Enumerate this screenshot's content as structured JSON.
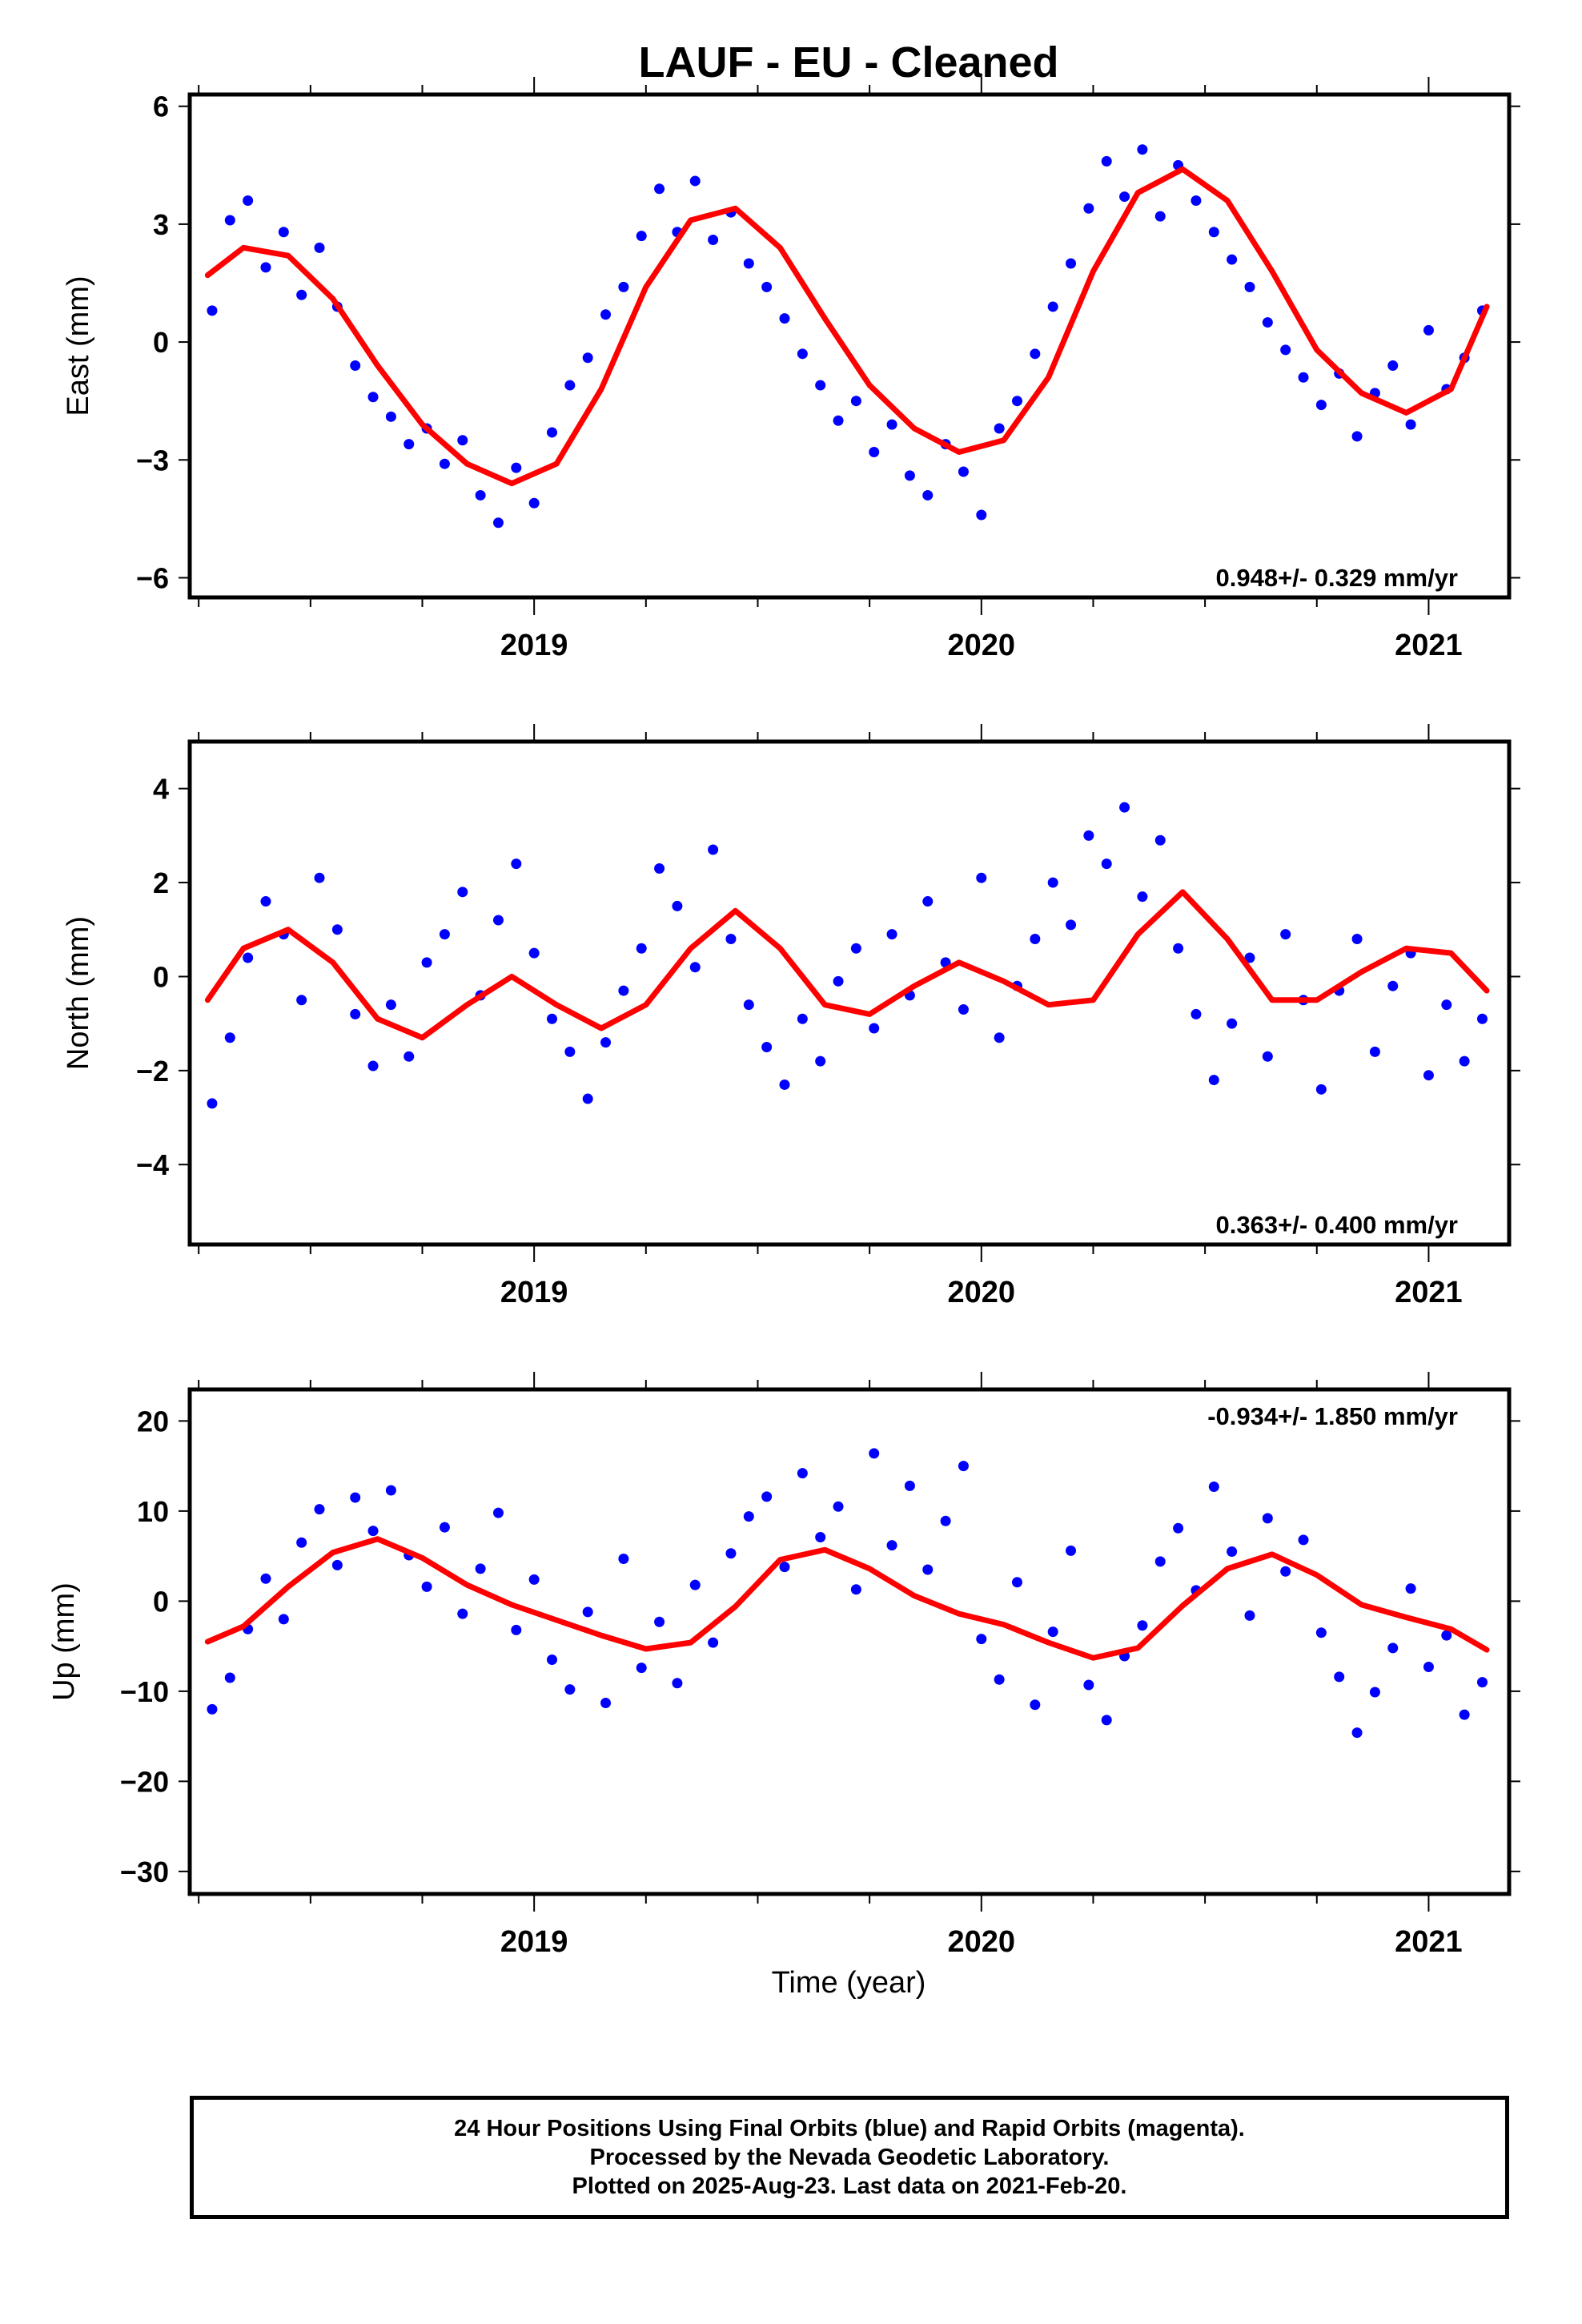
{
  "title": "LAUF  - EU - Cleaned",
  "xlabel": "Time (year)",
  "footer": {
    "line1": "24 Hour Positions Using Final Orbits (blue) and Rapid Orbits (magenta).",
    "line2": "Processed by the Nevada Geodetic Laboratory.",
    "line3": "Plotted on 2025-Aug-23. Last data on 2021-Feb-20."
  },
  "colors": {
    "points": "#0000ff",
    "model": "#ff0000",
    "frame": "#000000"
  },
  "chart_data": [
    {
      "type": "scatter",
      "ylabel": "East (mm)",
      "rate": "0.948+/- 0.329 mm/yr",
      "rate_position": "bottom-right",
      "xlim": [
        2018.23,
        2021.18
      ],
      "ylim": [
        -6.5,
        6.3
      ],
      "yticks": [
        6,
        3,
        0,
        -3,
        -6
      ],
      "yticklabels": [
        "6",
        "3",
        "0",
        "−3",
        "−6"
      ],
      "xticks": [
        2019,
        2020,
        2021
      ],
      "xticklabels": [
        "2019",
        "2020",
        "2021"
      ],
      "series": [
        {
          "kind": "scatter",
          "color": "#0000ff",
          "x": [
            2018.28,
            2018.32,
            2018.36,
            2018.4,
            2018.44,
            2018.48,
            2018.52,
            2018.56,
            2018.6,
            2018.64,
            2018.68,
            2018.72,
            2018.76,
            2018.8,
            2018.84,
            2018.88,
            2018.92,
            2018.96,
            2019.0,
            2019.04,
            2019.08,
            2019.12,
            2019.16,
            2019.2,
            2019.24,
            2019.28,
            2019.32,
            2019.36,
            2019.4,
            2019.44,
            2019.48,
            2019.52,
            2019.56,
            2019.6,
            2019.64,
            2019.68,
            2019.72,
            2019.76,
            2019.8,
            2019.84,
            2019.88,
            2019.92,
            2019.96,
            2020.0,
            2020.04,
            2020.08,
            2020.12,
            2020.16,
            2020.2,
            2020.24,
            2020.28,
            2020.32,
            2020.36,
            2020.4,
            2020.44,
            2020.48,
            2020.52,
            2020.56,
            2020.6,
            2020.64,
            2020.68,
            2020.72,
            2020.76,
            2020.8,
            2020.84,
            2020.88,
            2020.92,
            2020.96,
            2021.0,
            2021.04,
            2021.08,
            2021.12
          ],
          "y": [
            0.8,
            3.1,
            3.6,
            1.9,
            2.8,
            1.2,
            2.4,
            0.9,
            -0.6,
            -1.4,
            -1.9,
            -2.6,
            -2.2,
            -3.1,
            -2.5,
            -3.9,
            -4.6,
            -3.2,
            -4.1,
            -2.3,
            -1.1,
            -0.4,
            0.7,
            1.4,
            2.7,
            3.9,
            2.8,
            4.1,
            2.6,
            3.3,
            2.0,
            1.4,
            0.6,
            -0.3,
            -1.1,
            -2.0,
            -1.5,
            -2.8,
            -2.1,
            -3.4,
            -3.9,
            -2.6,
            -3.3,
            -4.4,
            -2.2,
            -1.5,
            -0.3,
            0.9,
            2.0,
            3.4,
            4.6,
            3.7,
            4.9,
            3.2,
            4.5,
            3.6,
            2.8,
            2.1,
            1.4,
            0.5,
            -0.2,
            -0.9,
            -1.6,
            -0.8,
            -2.4,
            -1.3,
            -0.6,
            -2.1,
            0.3,
            -1.2,
            -0.4,
            0.8
          ]
        },
        {
          "kind": "line",
          "color": "#ff0000",
          "x": [
            2018.27,
            2018.35,
            2018.45,
            2018.55,
            2018.65,
            2018.75,
            2018.85,
            2018.95,
            2019.05,
            2019.15,
            2019.25,
            2019.35,
            2019.45,
            2019.55,
            2019.65,
            2019.75,
            2019.85,
            2019.95,
            2020.05,
            2020.15,
            2020.25,
            2020.35,
            2020.45,
            2020.55,
            2020.65,
            2020.75,
            2020.85,
            2020.95,
            2021.05,
            2021.13
          ],
          "y": [
            1.7,
            2.4,
            2.2,
            1.1,
            -0.6,
            -2.1,
            -3.1,
            -3.6,
            -3.1,
            -1.2,
            1.4,
            3.1,
            3.4,
            2.4,
            0.6,
            -1.1,
            -2.2,
            -2.8,
            -2.5,
            -0.9,
            1.8,
            3.8,
            4.4,
            3.6,
            1.8,
            -0.2,
            -1.3,
            -1.8,
            -1.2,
            0.9
          ]
        }
      ]
    },
    {
      "type": "scatter",
      "ylabel": "North (mm)",
      "rate": "0.363+/- 0.400 mm/yr",
      "rate_position": "bottom-right",
      "xlim": [
        2018.23,
        2021.18
      ],
      "ylim": [
        -5.7,
        5.0
      ],
      "yticks": [
        4,
        2,
        0,
        -2,
        -4
      ],
      "yticklabels": [
        "4",
        "2",
        "0",
        "−2",
        "−4"
      ],
      "xticks": [
        2019,
        2020,
        2021
      ],
      "xticklabels": [
        "2019",
        "2020",
        "2021"
      ],
      "series": [
        {
          "kind": "scatter",
          "color": "#0000ff",
          "x": [
            2018.28,
            2018.32,
            2018.36,
            2018.4,
            2018.44,
            2018.48,
            2018.52,
            2018.56,
            2018.6,
            2018.64,
            2018.68,
            2018.72,
            2018.76,
            2018.8,
            2018.84,
            2018.88,
            2018.92,
            2018.96,
            2019.0,
            2019.04,
            2019.08,
            2019.12,
            2019.16,
            2019.2,
            2019.24,
            2019.28,
            2019.32,
            2019.36,
            2019.4,
            2019.44,
            2019.48,
            2019.52,
            2019.56,
            2019.6,
            2019.64,
            2019.68,
            2019.72,
            2019.76,
            2019.8,
            2019.84,
            2019.88,
            2019.92,
            2019.96,
            2020.0,
            2020.04,
            2020.08,
            2020.12,
            2020.16,
            2020.2,
            2020.24,
            2020.28,
            2020.32,
            2020.36,
            2020.4,
            2020.44,
            2020.48,
            2020.52,
            2020.56,
            2020.6,
            2020.64,
            2020.68,
            2020.72,
            2020.76,
            2020.8,
            2020.84,
            2020.88,
            2020.92,
            2020.96,
            2021.0,
            2021.04,
            2021.08,
            2021.12
          ],
          "y": [
            -2.7,
            -1.3,
            0.4,
            1.6,
            0.9,
            -0.5,
            2.1,
            1.0,
            -0.8,
            -1.9,
            -0.6,
            -1.7,
            0.3,
            0.9,
            1.8,
            -0.4,
            1.2,
            2.4,
            0.5,
            -0.9,
            -1.6,
            -2.6,
            -1.4,
            -0.3,
            0.6,
            2.3,
            1.5,
            0.2,
            2.7,
            0.8,
            -0.6,
            -1.5,
            -2.3,
            -0.9,
            -1.8,
            -0.1,
            0.6,
            -1.1,
            0.9,
            -0.4,
            1.6,
            0.3,
            -0.7,
            2.1,
            -1.3,
            -0.2,
            0.8,
            2.0,
            1.1,
            3.0,
            2.4,
            3.6,
            1.7,
            2.9,
            0.6,
            -0.8,
            -2.2,
            -1.0,
            0.4,
            -1.7,
            0.9,
            -0.5,
            -2.4,
            -0.3,
            0.8,
            -1.6,
            -0.2,
            0.5,
            -2.1,
            -0.6,
            -1.8,
            -0.9
          ]
        },
        {
          "kind": "line",
          "color": "#ff0000",
          "x": [
            2018.27,
            2018.35,
            2018.45,
            2018.55,
            2018.65,
            2018.75,
            2018.85,
            2018.95,
            2019.05,
            2019.15,
            2019.25,
            2019.35,
            2019.45,
            2019.55,
            2019.65,
            2019.75,
            2019.85,
            2019.95,
            2020.05,
            2020.15,
            2020.25,
            2020.35,
            2020.45,
            2020.55,
            2020.65,
            2020.75,
            2020.85,
            2020.95,
            2021.05,
            2021.13
          ],
          "y": [
            -0.5,
            0.6,
            1.0,
            0.3,
            -0.9,
            -1.3,
            -0.6,
            0.0,
            -0.6,
            -1.1,
            -0.6,
            0.6,
            1.4,
            0.6,
            -0.6,
            -0.8,
            -0.2,
            0.3,
            -0.1,
            -0.6,
            -0.5,
            0.9,
            1.8,
            0.8,
            -0.5,
            -0.5,
            0.1,
            0.6,
            0.5,
            -0.3
          ]
        }
      ]
    },
    {
      "type": "scatter",
      "ylabel": "Up (mm)",
      "rate": "-0.934+/- 1.850 mm/yr",
      "rate_position": "top-right",
      "xlim": [
        2018.23,
        2021.18
      ],
      "ylim": [
        -32.5,
        23.5
      ],
      "yticks": [
        20,
        10,
        0,
        -10,
        -20,
        -30
      ],
      "yticklabels": [
        "20",
        "10",
        "0",
        "−10",
        "−20",
        "−30"
      ],
      "xticks": [
        2019,
        2020,
        2021
      ],
      "xticklabels": [
        "2019",
        "2020",
        "2021"
      ],
      "series": [
        {
          "kind": "scatter",
          "color": "#0000ff",
          "x": [
            2018.28,
            2018.32,
            2018.36,
            2018.4,
            2018.44,
            2018.48,
            2018.52,
            2018.56,
            2018.6,
            2018.64,
            2018.68,
            2018.72,
            2018.76,
            2018.8,
            2018.84,
            2018.88,
            2018.92,
            2018.96,
            2019.0,
            2019.04,
            2019.08,
            2019.12,
            2019.16,
            2019.2,
            2019.24,
            2019.28,
            2019.32,
            2019.36,
            2019.4,
            2019.44,
            2019.48,
            2019.52,
            2019.56,
            2019.6,
            2019.64,
            2019.68,
            2019.72,
            2019.76,
            2019.8,
            2019.84,
            2019.88,
            2019.92,
            2019.96,
            2020.0,
            2020.04,
            2020.08,
            2020.12,
            2020.16,
            2020.2,
            2020.24,
            2020.28,
            2020.32,
            2020.36,
            2020.4,
            2020.44,
            2020.48,
            2020.52,
            2020.56,
            2020.6,
            2020.64,
            2020.68,
            2020.72,
            2020.76,
            2020.8,
            2020.84,
            2020.88,
            2020.92,
            2020.96,
            2021.0,
            2021.04,
            2021.08,
            2021.12
          ],
          "y": [
            -12.0,
            -8.5,
            -3.1,
            2.5,
            -2.0,
            6.5,
            10.2,
            4.0,
            11.5,
            7.8,
            12.3,
            5.1,
            1.6,
            8.2,
            -1.4,
            3.6,
            9.8,
            -3.2,
            2.4,
            -6.5,
            -9.8,
            -1.2,
            -11.3,
            4.7,
            -7.4,
            -2.3,
            -9.1,
            1.8,
            -4.6,
            5.3,
            9.4,
            11.6,
            3.8,
            14.2,
            7.1,
            10.5,
            1.3,
            16.4,
            6.2,
            12.8,
            3.5,
            8.9,
            15.0,
            -4.2,
            -8.7,
            2.1,
            -11.5,
            -3.4,
            5.6,
            -9.3,
            -13.2,
            -6.1,
            -2.7,
            4.4,
            8.1,
            1.2,
            12.7,
            5.5,
            -1.6,
            9.2,
            3.3,
            6.8,
            -3.5,
            -8.4,
            -14.6,
            -10.1,
            -5.2,
            1.4,
            -7.3,
            -3.8,
            -12.6,
            -9.0
          ]
        },
        {
          "kind": "line",
          "color": "#ff0000",
          "x": [
            2018.27,
            2018.35,
            2018.45,
            2018.55,
            2018.65,
            2018.75,
            2018.85,
            2018.95,
            2019.05,
            2019.15,
            2019.25,
            2019.35,
            2019.45,
            2019.55,
            2019.65,
            2019.75,
            2019.85,
            2019.95,
            2020.05,
            2020.15,
            2020.25,
            2020.35,
            2020.45,
            2020.55,
            2020.65,
            2020.75,
            2020.85,
            2020.95,
            2021.05,
            2021.13
          ],
          "y": [
            -4.5,
            -2.8,
            1.6,
            5.4,
            6.9,
            4.8,
            1.8,
            -0.4,
            -2.1,
            -3.8,
            -5.3,
            -4.6,
            -0.6,
            4.6,
            5.7,
            3.6,
            0.6,
            -1.4,
            -2.6,
            -4.6,
            -6.3,
            -5.2,
            -0.5,
            3.6,
            5.2,
            2.9,
            -0.4,
            -1.8,
            -3.1,
            -5.4
          ]
        }
      ]
    }
  ]
}
